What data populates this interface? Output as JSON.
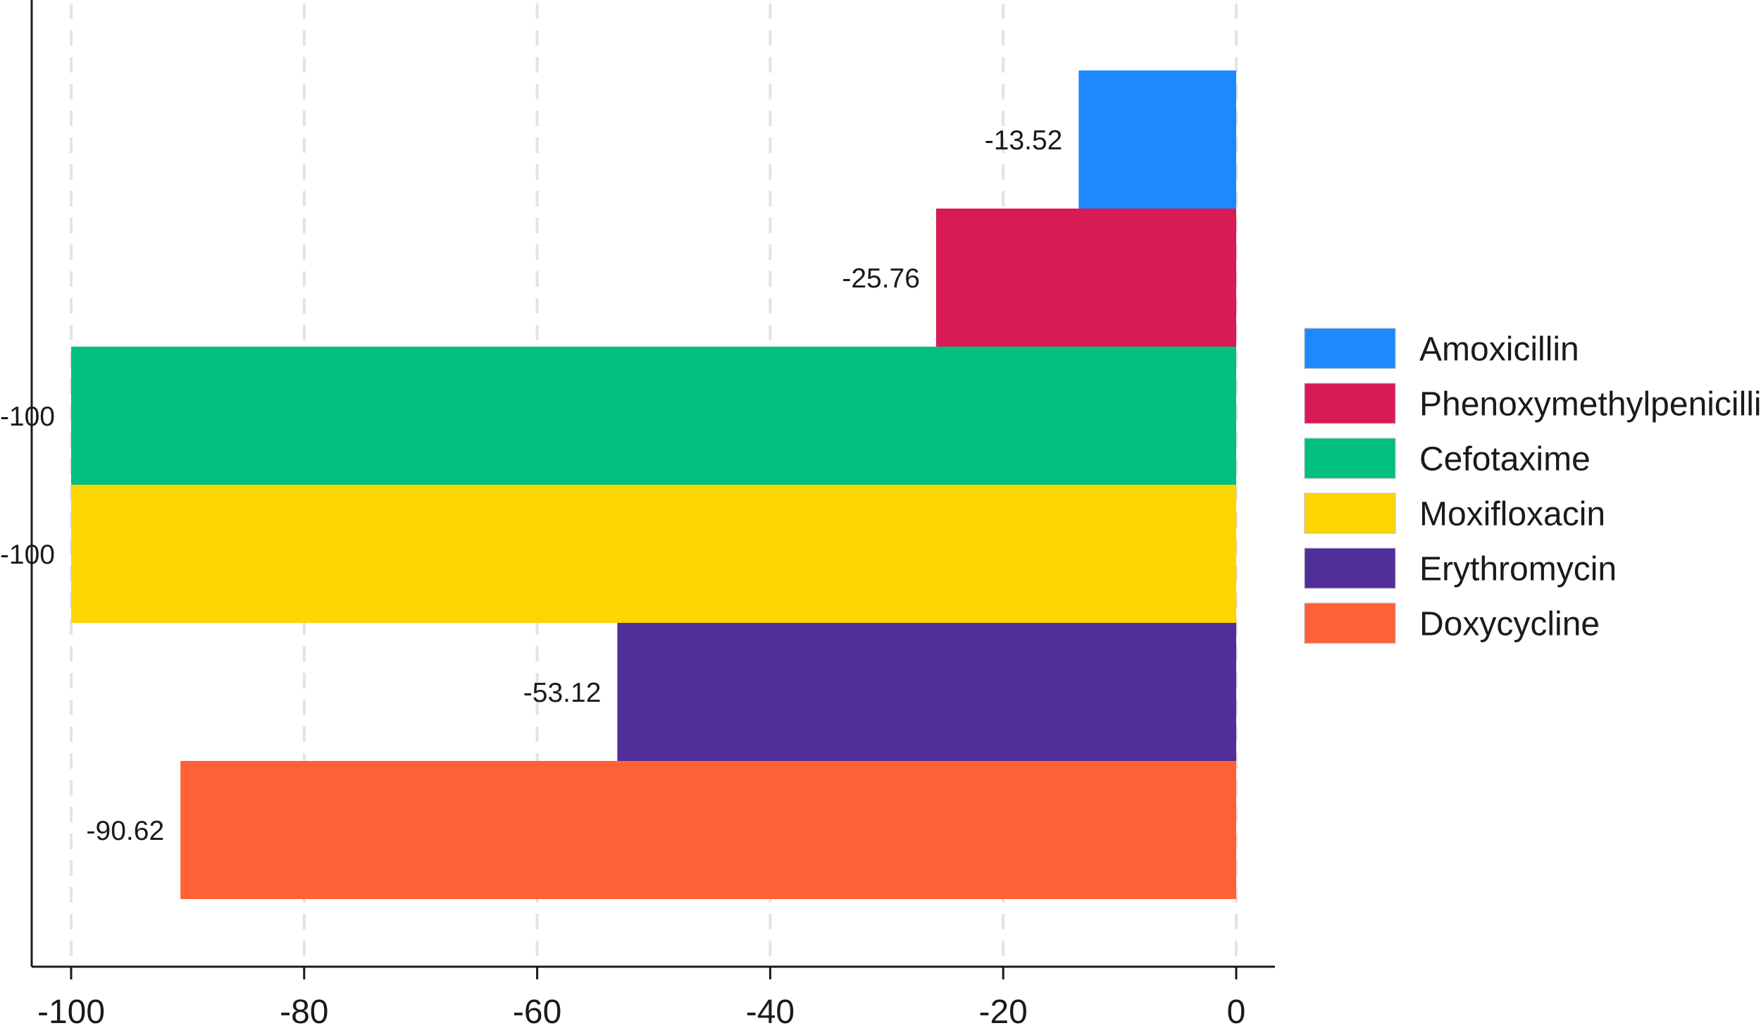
{
  "chart_data": {
    "type": "bar",
    "orientation": "horizontal",
    "categories": [
      "Amoxicillin",
      "Phenoxymethylpenicillin",
      "Cefotaxime",
      "Moxifloxacin",
      "Erythromycin",
      "Doxycycline"
    ],
    "values": [
      -13.52,
      -25.76,
      -100,
      -100,
      -53.12,
      -90.62
    ],
    "data_labels": [
      "-13.52",
      "-25.76",
      "-100",
      "-100",
      "-53.12",
      "-90.62"
    ],
    "colors": [
      "#1E88FF",
      "#D81B55",
      "#00BF7F",
      "#FDD500",
      "#512E9A",
      "#FF6137"
    ],
    "x_ticks": [
      -100,
      -80,
      -60,
      -40,
      -20,
      0
    ],
    "x_tick_labels": [
      "-100",
      "-80",
      "-60",
      "-40",
      "-20",
      "0"
    ],
    "xlim": [
      -100,
      0
    ],
    "title": "",
    "xlabel": "",
    "ylabel": "",
    "grid": "vertical dashed",
    "legend_position": "right"
  }
}
